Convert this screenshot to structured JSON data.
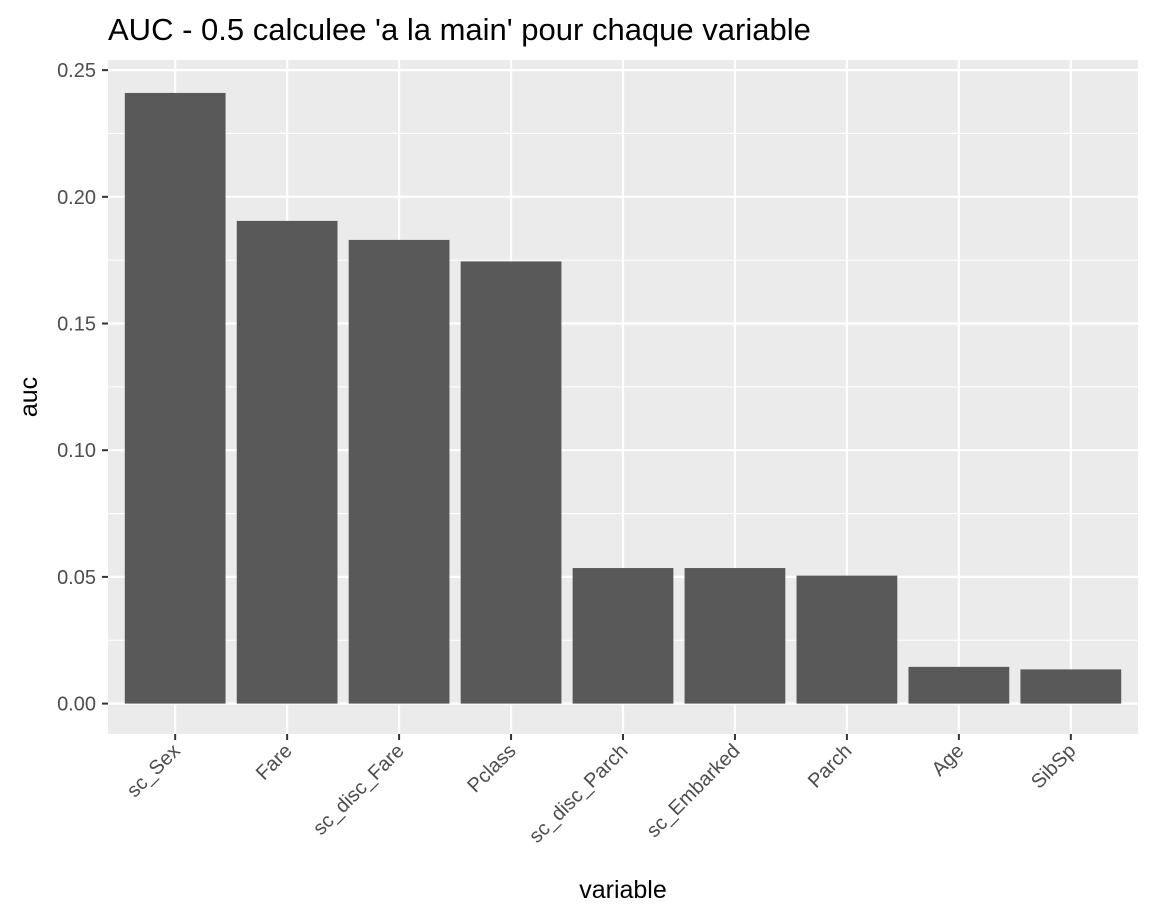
{
  "chart_data": {
    "type": "bar",
    "title": "AUC - 0.5 calculee 'a la main' pour chaque variable",
    "xlabel": "variable",
    "ylabel": "auc",
    "categories": [
      "sc_Sex",
      "Fare",
      "sc_disc_Fare",
      "Pclass",
      "sc_disc_Parch",
      "sc_Embarked",
      "Parch",
      "Age",
      "SibSp"
    ],
    "values": [
      0.241,
      0.1905,
      0.183,
      0.1745,
      0.0535,
      0.0535,
      0.0505,
      0.0145,
      0.0135
    ],
    "ylim": [
      -0.012,
      0.254
    ],
    "yticks": [
      0.0,
      0.05,
      0.1,
      0.15,
      0.2,
      0.25
    ],
    "ytick_labels": [
      "0.00",
      "0.05",
      "0.10",
      "0.15",
      "0.20",
      "0.25"
    ],
    "grid": true,
    "legend": "none",
    "colors": {
      "bar": "#595959",
      "panel": "#ebebeb",
      "grid_major": "#ffffff",
      "tick_text": "#4d4d4d",
      "tick_mark": "#333333"
    }
  }
}
